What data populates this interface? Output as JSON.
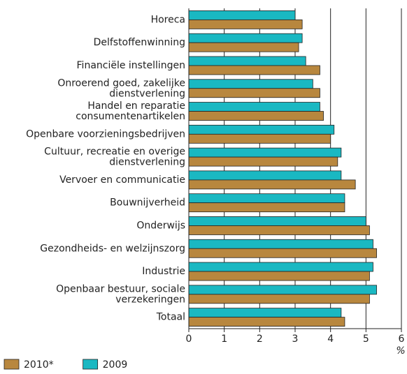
{
  "chart_data": {
    "type": "hbar",
    "categories": [
      "Horeca",
      "Delfstoffenwinning",
      "Financiële instellingen",
      "Onroerend goed, zakelijke\ndienstverlening",
      "Handel en reparatie\nconsumentenartikelen",
      "Openbare voorzieningsbedrijven",
      "Cultuur, recreatie en overige\ndienstverlening",
      "Vervoer en communicatie",
      "Bouwnijverheid",
      "Onderwijs",
      "Gezondheids- en welzijnszorg",
      "Industrie",
      "Openbaar bestuur, sociale\nverzekeringen",
      "Totaal"
    ],
    "series": [
      {
        "name": "2009",
        "color": "#1ab8c2",
        "values": [
          3.0,
          3.2,
          3.3,
          3.5,
          3.7,
          4.1,
          4.3,
          4.3,
          4.4,
          5.0,
          5.2,
          5.2,
          5.3,
          4.3
        ]
      },
      {
        "name": "2010*",
        "color": "#b8873e",
        "values": [
          3.2,
          3.1,
          3.7,
          3.7,
          3.8,
          4.0,
          4.2,
          4.7,
          4.4,
          5.1,
          5.3,
          5.1,
          5.1,
          4.4
        ]
      }
    ],
    "x_label": "%",
    "xlim": [
      0,
      6
    ],
    "xticks": [
      0,
      1,
      2,
      3,
      4,
      5,
      6
    ],
    "grid": true,
    "legend": "bottom-left"
  }
}
